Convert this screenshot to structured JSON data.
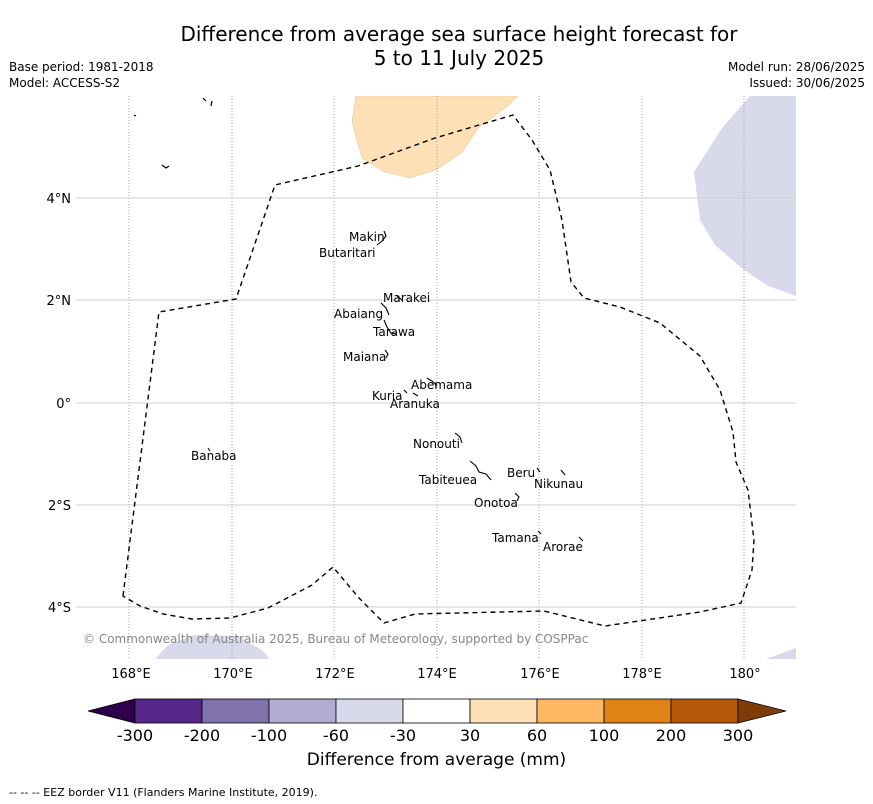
{
  "title_line1": "Difference from average sea surface height forecast for",
  "title_line2": "5 to 11 July 2025",
  "base_period": "Base period: 1981-2018",
  "model": "Model: ACCESS-S2",
  "model_run": "Model run: 28/06/2025",
  "issued": "Issued: 30/06/2025",
  "copyright": "© Commonwealth of Australia 2025, Bureau of Meteorology, supported by COSPPac",
  "colorbar_label": "Difference from average (mm)",
  "footnote": "--  --  -- EEZ border V11 (Flanders Marine Institute, 2019).",
  "lon_labels": [
    "168°E",
    "170°E",
    "172°E",
    "174°E",
    "176°E",
    "178°E",
    "180°"
  ],
  "lat_labels": [
    "4°N",
    "2°N",
    "0°",
    "2°S",
    "4°S"
  ],
  "colorbar": {
    "ticks": [
      "-300",
      "-200",
      "-100",
      "-60",
      "-30",
      "30",
      "60",
      "100",
      "200",
      "300"
    ],
    "colors": [
      "#2d004b",
      "#542788",
      "#8073ac",
      "#b2abd2",
      "#d8daeb",
      "#ffffff",
      "#fee0b6",
      "#fdb863",
      "#e08214",
      "#b35806",
      "#7f3b08"
    ]
  },
  "islands": [
    {
      "name": "Makin",
      "lon": 172.99,
      "lat": 3.08
    },
    {
      "name": "Butaritari",
      "lon": 172.79,
      "lat": 3.07
    },
    {
      "name": "Marakei",
      "lon": 173.28,
      "lat": 2.0
    },
    {
      "name": "Abaiang",
      "lon": 172.93,
      "lat": 1.84
    },
    {
      "name": "Tarawa",
      "lon": 172.98,
      "lat": 1.42
    },
    {
      "name": "Maiana",
      "lon": 173.0,
      "lat": 0.95
    },
    {
      "name": "Abemama",
      "lon": 173.87,
      "lat": 0.4
    },
    {
      "name": "Kuria",
      "lon": 173.4,
      "lat": 0.23
    },
    {
      "name": "Aranuka",
      "lon": 173.6,
      "lat": 0.17
    },
    {
      "name": "Nonouti",
      "lon": 174.43,
      "lat": -0.67
    },
    {
      "name": "Banaba",
      "lon": 169.54,
      "lat": -0.87
    },
    {
      "name": "Beru",
      "lon": 176.0,
      "lat": -1.35
    },
    {
      "name": "Tabiteuea",
      "lon": 174.85,
      "lat": -1.35
    },
    {
      "name": "Nikunau",
      "lon": 176.45,
      "lat": -1.35
    },
    {
      "name": "Onotoa",
      "lon": 175.56,
      "lat": -1.8
    },
    {
      "name": "Tamana",
      "lon": 175.98,
      "lat": -2.5
    },
    {
      "name": "Arorae",
      "lon": 176.82,
      "lat": -2.65
    }
  ]
}
